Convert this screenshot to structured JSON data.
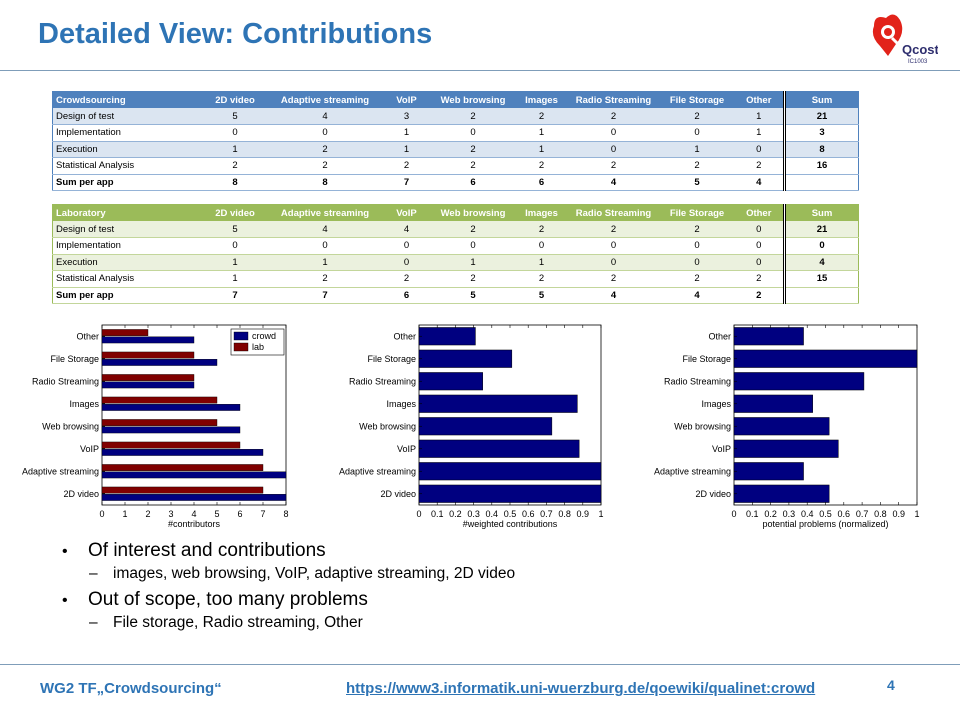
{
  "title": "Detailed View: Contributions",
  "logo": {
    "text": "Qcost",
    "subtext": "IC1003"
  },
  "columns": [
    "2D video",
    "Adaptive streaming",
    "VoIP",
    "Web browsing",
    "Images",
    "Radio Streaming",
    "File Storage",
    "Other",
    "Sum"
  ],
  "crowd_table": {
    "header": "Crowdsourcing",
    "rows": [
      {
        "label": "Design of test",
        "values": [
          "5",
          "4",
          "3",
          "2",
          "2",
          "2",
          "2",
          "1"
        ],
        "sum": "21"
      },
      {
        "label": "Implementation",
        "values": [
          "0",
          "0",
          "1",
          "0",
          "1",
          "0",
          "0",
          "1"
        ],
        "sum": "3"
      },
      {
        "label": "Execution",
        "values": [
          "1",
          "2",
          "1",
          "2",
          "1",
          "0",
          "1",
          "0"
        ],
        "sum": "8"
      },
      {
        "label": "Statistical Analysis",
        "values": [
          "2",
          "2",
          "2",
          "2",
          "2",
          "2",
          "2",
          "2"
        ],
        "sum": "16"
      }
    ],
    "sum_row": {
      "label": "Sum per app",
      "values": [
        "8",
        "8",
        "7",
        "6",
        "6",
        "4",
        "5",
        "4"
      ]
    }
  },
  "lab_table": {
    "header": "Laboratory",
    "rows": [
      {
        "label": "Design of test",
        "values": [
          "5",
          "4",
          "4",
          "2",
          "2",
          "2",
          "2",
          "0"
        ],
        "sum": "21"
      },
      {
        "label": "Implementation",
        "values": [
          "0",
          "0",
          "0",
          "0",
          "0",
          "0",
          "0",
          "0"
        ],
        "sum": "0"
      },
      {
        "label": "Execution",
        "values": [
          "1",
          "1",
          "0",
          "1",
          "1",
          "0",
          "0",
          "0"
        ],
        "sum": "4"
      },
      {
        "label": "Statistical Analysis",
        "values": [
          "1",
          "2",
          "2",
          "2",
          "2",
          "2",
          "2",
          "2"
        ],
        "sum": "15"
      }
    ],
    "sum_row": {
      "label": "Sum per app",
      "values": [
        "7",
        "7",
        "6",
        "5",
        "5",
        "4",
        "4",
        "2"
      ]
    }
  },
  "chart_data": [
    {
      "type": "bar",
      "orientation": "horizontal",
      "categories": [
        "Other",
        "File Storage",
        "Radio Streaming",
        "Images",
        "Web browsing",
        "VoIP",
        "Adaptive streaming",
        "2D video"
      ],
      "series": [
        {
          "name": "crowd",
          "color": "#000080",
          "values": [
            4,
            5,
            4,
            6,
            6,
            7,
            8,
            8
          ]
        },
        {
          "name": "lab",
          "color": "#800000",
          "values": [
            2,
            4,
            4,
            5,
            5,
            6,
            7,
            7
          ]
        }
      ],
      "xlabel": "#contributors",
      "xlim": [
        0,
        8
      ],
      "xticks": [
        "0",
        "1",
        "2",
        "3",
        "4",
        "5",
        "6",
        "7",
        "8"
      ],
      "legend": "top-right"
    },
    {
      "type": "bar",
      "orientation": "horizontal",
      "categories": [
        "Other",
        "File Storage",
        "Radio Streaming",
        "Images",
        "Web browsing",
        "VoIP",
        "Adaptive streaming",
        "2D video"
      ],
      "series": [
        {
          "color": "#000080",
          "values": [
            0.31,
            0.51,
            0.35,
            0.87,
            0.73,
            0.88,
            1.0,
            1.0
          ]
        }
      ],
      "xlabel": "#weighted contributions",
      "xlim": [
        0,
        1
      ],
      "xticks": [
        "0",
        "0.1",
        "0.2",
        "0.3",
        "0.4",
        "0.5",
        "0.6",
        "0.7",
        "0.8",
        "0.9",
        "1"
      ]
    },
    {
      "type": "bar",
      "orientation": "horizontal",
      "categories": [
        "Other",
        "File Storage",
        "Radio Streaming",
        "Images",
        "Web browsing",
        "VoIP",
        "Adaptive streaming",
        "2D video"
      ],
      "series": [
        {
          "color": "#000080",
          "values": [
            0.38,
            1.0,
            0.71,
            0.43,
            0.52,
            0.57,
            0.38,
            0.52
          ]
        }
      ],
      "xlabel": "potential problems (normalized)",
      "xlim": [
        0,
        1
      ],
      "xticks": [
        "0",
        "0.1",
        "0.2",
        "0.3",
        "0.4",
        "0.5",
        "0.6",
        "0.7",
        "0.8",
        "0.9",
        "1"
      ]
    }
  ],
  "bullets": [
    {
      "text": "Of interest and contributions",
      "sub": "images, web browsing, VoIP, adaptive streaming, 2D video"
    },
    {
      "text": "Out of scope, too many problems",
      "sub": "File storage, Radio streaming, Other"
    }
  ],
  "footer": {
    "left": "WG2 TF„Crowdsourcing“",
    "link": "https://www3.informatik.uni-wuerzburg.de/qoewiki/qualinet:crowd",
    "page": "4"
  }
}
